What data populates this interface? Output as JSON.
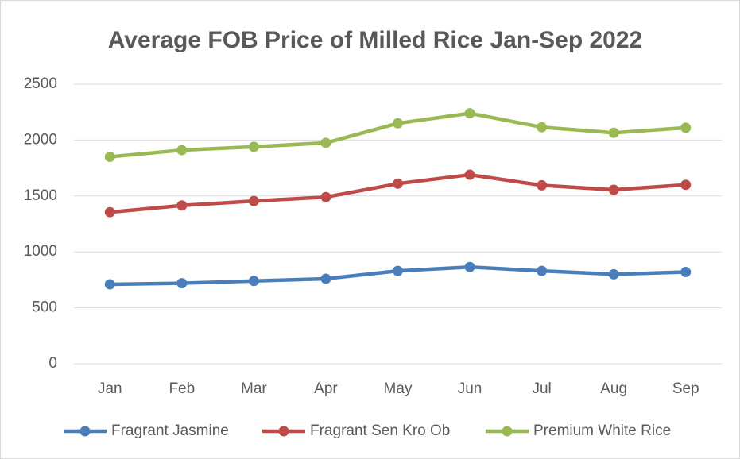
{
  "chart_data": {
    "type": "line",
    "title": "Average FOB Price of Milled Rice Jan-Sep 2022",
    "categories": [
      "Jan",
      "Feb",
      "Mar",
      "Apr",
      "May",
      "Jun",
      "Jul",
      "Aug",
      "Sep"
    ],
    "series": [
      {
        "name": "Fragrant Jasmine",
        "color": "#4a7ebb",
        "values": [
          710,
          720,
          740,
          760,
          830,
          865,
          830,
          800,
          820
        ]
      },
      {
        "name": "Fragrant Sen Kro Ob",
        "color": "#be4b48",
        "values": [
          1355,
          1415,
          1455,
          1490,
          1610,
          1690,
          1595,
          1555,
          1600
        ]
      },
      {
        "name": "Premium White Rice",
        "color": "#98b954",
        "values": [
          1850,
          1910,
          1940,
          1975,
          2150,
          2240,
          2115,
          2065,
          2110
        ]
      }
    ],
    "ylim": [
      0,
      2500
    ],
    "yticks": [
      0,
      500,
      1000,
      1500,
      2000,
      2500
    ],
    "grid": true,
    "legend": "bottom"
  }
}
